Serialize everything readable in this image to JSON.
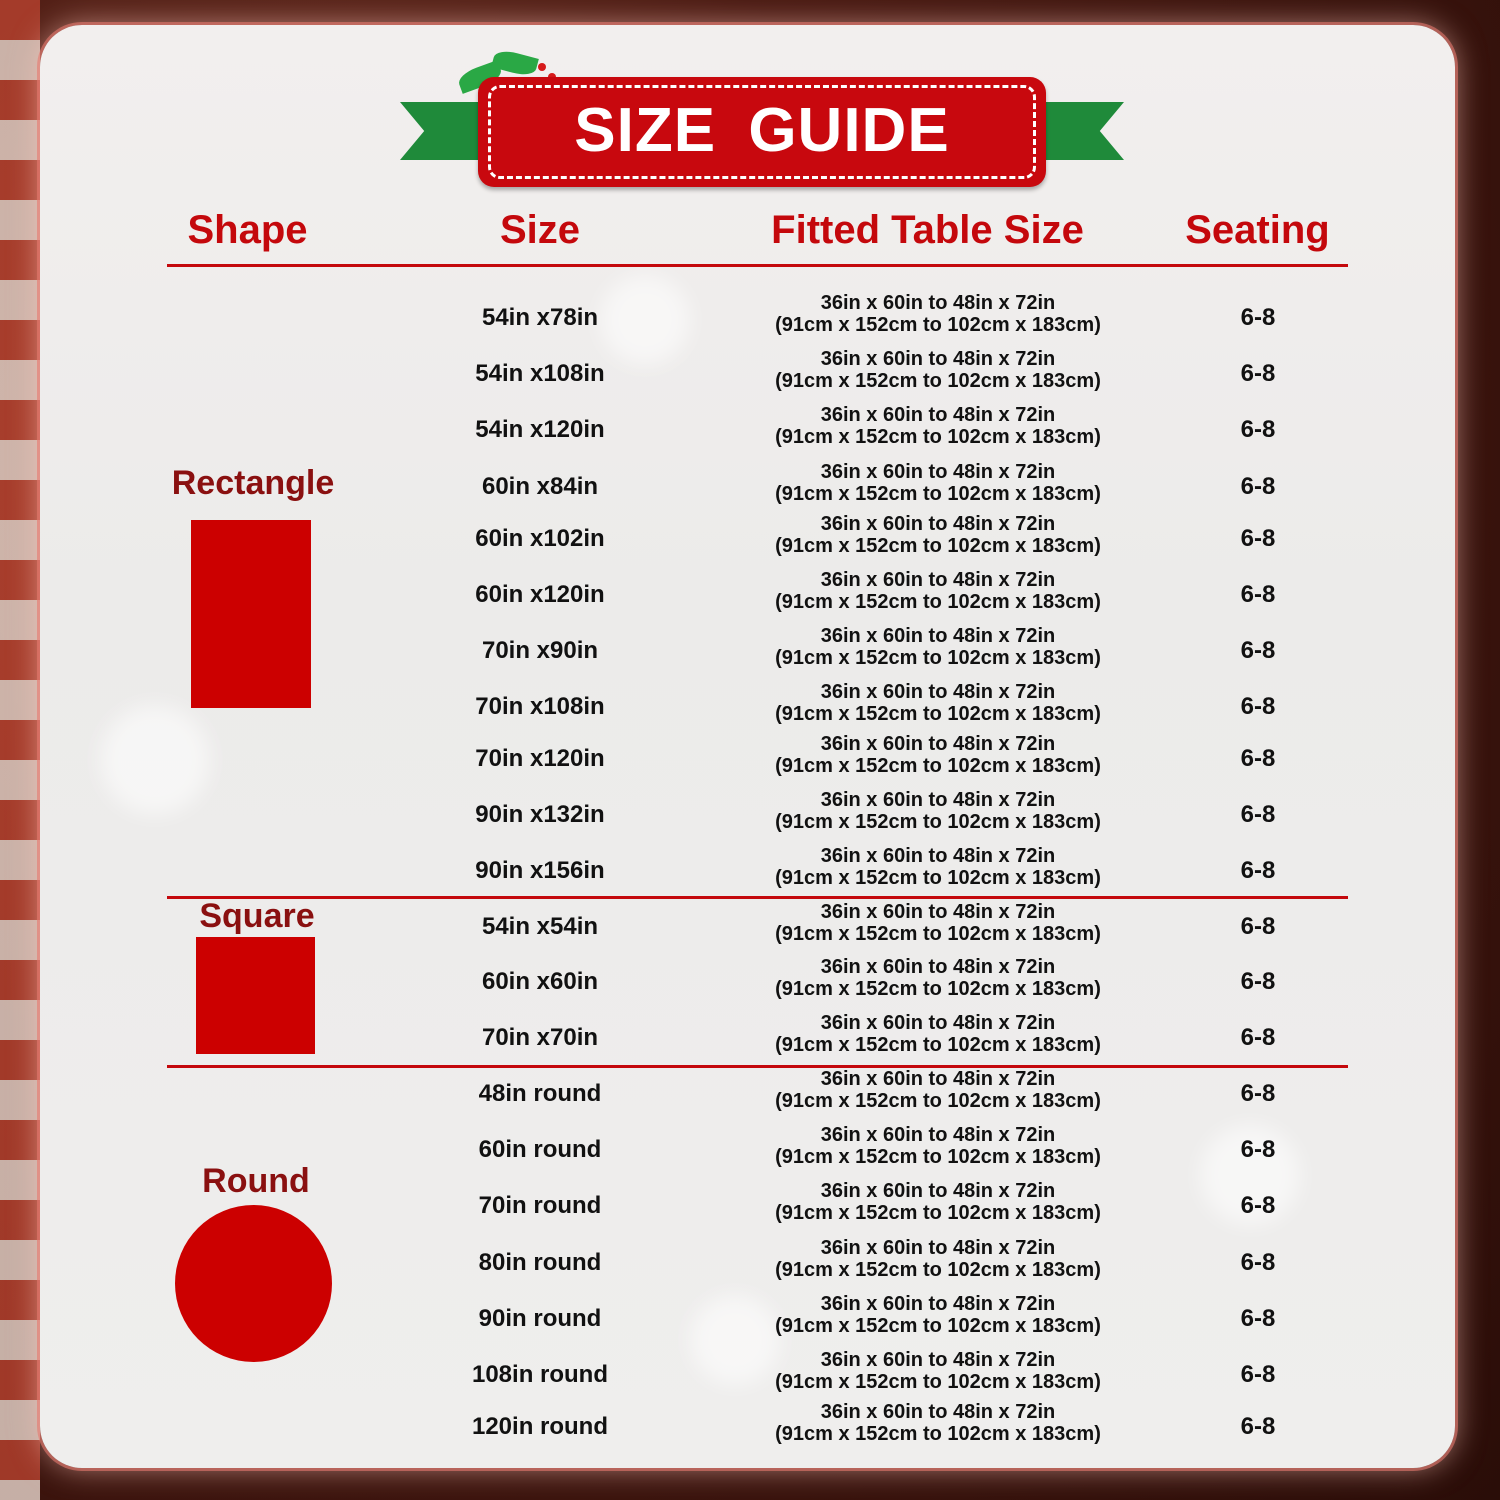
{
  "title": "SIZE GUIDE",
  "headers": {
    "shape": "Shape",
    "size": "Size",
    "fitted": "Fitted Table Size",
    "seating": "Seating"
  },
  "colors": {
    "accent": "#c4080c",
    "shape_fill": "#cc0000",
    "ribbon": "#1f8a3a",
    "shape_label": "#8a1010"
  },
  "groups": [
    {
      "shape": "Rectangle",
      "icon": "rectangle-shape",
      "rows": [
        {
          "size": "54in x78in",
          "fitted_in": "36in x 60in to 48in x 72in",
          "fitted_cm": "(91cm x 152cm to 102cm x 183cm)",
          "seating": "6-8"
        },
        {
          "size": "54in x108in",
          "fitted_in": "36in x 60in to 48in x 72in",
          "fitted_cm": "(91cm x 152cm to 102cm x 183cm)",
          "seating": "6-8"
        },
        {
          "size": "54in x120in",
          "fitted_in": "36in x 60in to 48in x 72in",
          "fitted_cm": "(91cm x 152cm to 102cm x 183cm)",
          "seating": "6-8"
        },
        {
          "size": "60in x84in",
          "fitted_in": "36in x 60in to 48in x 72in",
          "fitted_cm": "(91cm x 152cm to 102cm x 183cm)",
          "seating": "6-8"
        },
        {
          "size": "60in x102in",
          "fitted_in": "36in x 60in to 48in x 72in",
          "fitted_cm": "(91cm x 152cm to 102cm x 183cm)",
          "seating": "6-8"
        },
        {
          "size": "60in x120in",
          "fitted_in": "36in x 60in to 48in x 72in",
          "fitted_cm": "(91cm x 152cm to 102cm x 183cm)",
          "seating": "6-8"
        },
        {
          "size": "70in x90in",
          "fitted_in": "36in x 60in to 48in x 72in",
          "fitted_cm": "(91cm x 152cm to 102cm x 183cm)",
          "seating": "6-8"
        },
        {
          "size": "70in x108in",
          "fitted_in": "36in x 60in to 48in x 72in",
          "fitted_cm": "(91cm x 152cm to 102cm x 183cm)",
          "seating": "6-8"
        },
        {
          "size": "70in x120in",
          "fitted_in": "36in x 60in to 48in x 72in",
          "fitted_cm": "(91cm x 152cm to 102cm x 183cm)",
          "seating": "6-8"
        },
        {
          "size": "90in x132in",
          "fitted_in": "36in x 60in to 48in x 72in",
          "fitted_cm": "(91cm x 152cm to 102cm x 183cm)",
          "seating": "6-8"
        },
        {
          "size": "90in x156in",
          "fitted_in": "36in x 60in to 48in x 72in",
          "fitted_cm": "(91cm x 152cm to 102cm x 183cm)",
          "seating": "6-8"
        }
      ]
    },
    {
      "shape": "Square",
      "icon": "square-shape",
      "rows": [
        {
          "size": "54in x54in",
          "fitted_in": "36in x 60in to 48in x 72in",
          "fitted_cm": "(91cm x 152cm to 102cm x 183cm)",
          "seating": "6-8"
        },
        {
          "size": "60in x60in",
          "fitted_in": "36in x 60in to 48in x 72in",
          "fitted_cm": "(91cm x 152cm to 102cm x 183cm)",
          "seating": "6-8"
        },
        {
          "size": "70in x70in",
          "fitted_in": "36in x 60in to 48in x 72in",
          "fitted_cm": "(91cm x 152cm to 102cm x 183cm)",
          "seating": "6-8"
        }
      ]
    },
    {
      "shape": "Round",
      "icon": "circle-shape",
      "rows": [
        {
          "size": "48in round",
          "fitted_in": "36in x 60in to 48in x 72in",
          "fitted_cm": "(91cm x 152cm to 102cm x 183cm)",
          "seating": "6-8"
        },
        {
          "size": "60in round",
          "fitted_in": "36in x 60in to 48in x 72in",
          "fitted_cm": "(91cm x 152cm to 102cm x 183cm)",
          "seating": "6-8"
        },
        {
          "size": "70in round",
          "fitted_in": "36in x 60in to 48in x 72in",
          "fitted_cm": "(91cm x 152cm to 102cm x 183cm)",
          "seating": "6-8"
        },
        {
          "size": "80in round",
          "fitted_in": "36in x 60in to 48in x 72in",
          "fitted_cm": "(91cm x 152cm to 102cm x 183cm)",
          "seating": "6-8"
        },
        {
          "size": "90in round",
          "fitted_in": "36in x 60in to 48in x 72in",
          "fitted_cm": "(91cm x 152cm to 102cm x 183cm)",
          "seating": "6-8"
        },
        {
          "size": "108in round",
          "fitted_in": "36in x 60in to 48in x 72in",
          "fitted_cm": "(91cm x 152cm to 102cm x 183cm)",
          "seating": "6-8"
        },
        {
          "size": "120in round",
          "fitted_in": "36in x 60in to 48in x 72in",
          "fitted_cm": "(91cm x 152cm to 102cm x 183cm)",
          "seating": "6-8"
        }
      ]
    }
  ]
}
